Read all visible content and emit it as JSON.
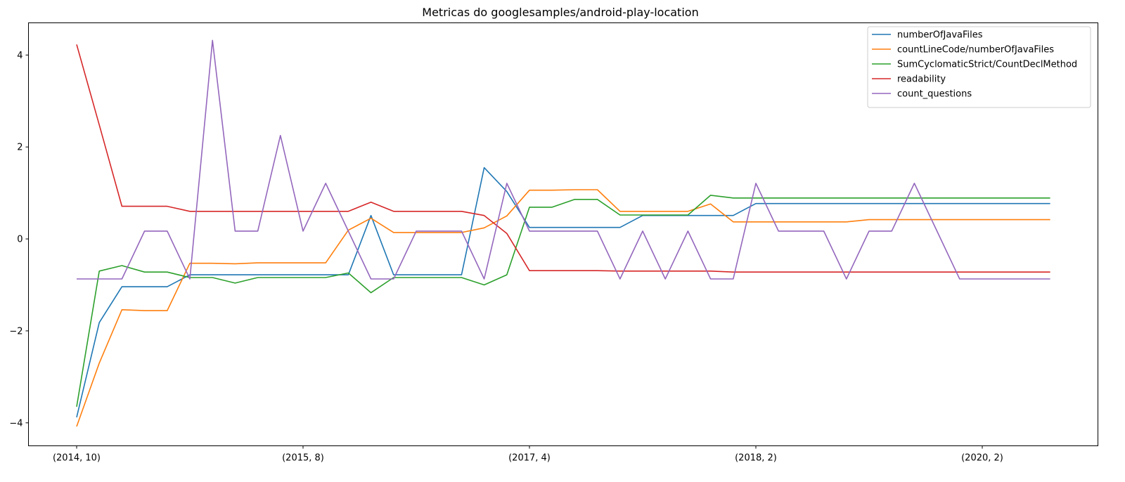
{
  "chart_data": {
    "type": "line",
    "title": "Metricas do googlesamples/android-play-location",
    "xlabel": "",
    "ylabel": "",
    "ylim": [
      -4.5,
      4.7
    ],
    "x_tick_labels": [
      {
        "index": 0,
        "label": "(2014, 10)"
      },
      {
        "index": 10,
        "label": "(2015, 8)"
      },
      {
        "index": 20,
        "label": "(2017, 4)"
      },
      {
        "index": 30,
        "label": "(2018, 2)"
      },
      {
        "index": 40,
        "label": "(2020, 2)"
      }
    ],
    "y_ticks": [
      -4,
      -2,
      0,
      2,
      4
    ],
    "y_tick_labels": [
      "−4",
      "−2",
      "0",
      "2",
      "4"
    ],
    "grid": false,
    "legend_position": "top-right",
    "series": [
      {
        "name": "numberOfJavaFiles",
        "color": "#1f77b4",
        "values": [
          -3.88,
          -1.82,
          -1.04,
          -1.04,
          -1.04,
          -0.78,
          -0.78,
          -0.78,
          -0.78,
          -0.78,
          -0.78,
          -0.78,
          -0.78,
          0.51,
          -0.78,
          -0.78,
          -0.78,
          -0.78,
          1.55,
          1.03,
          0.25,
          0.25,
          0.25,
          0.25,
          0.25,
          0.51,
          0.51,
          0.51,
          0.51,
          0.51,
          0.77,
          0.77,
          0.77,
          0.77,
          0.77,
          0.77,
          0.77,
          0.77,
          0.77,
          0.77,
          0.77,
          0.77,
          0.77,
          0.77
        ]
      },
      {
        "name": "countLineCode/numberOfJavaFiles",
        "color": "#ff7f0e",
        "values": [
          -4.08,
          -2.7,
          -1.54,
          -1.56,
          -1.56,
          -0.53,
          -0.53,
          -0.54,
          -0.52,
          -0.52,
          -0.52,
          -0.52,
          0.19,
          0.45,
          0.14,
          0.14,
          0.14,
          0.14,
          0.24,
          0.5,
          1.06,
          1.06,
          1.07,
          1.07,
          0.6,
          0.6,
          0.6,
          0.6,
          0.76,
          0.37,
          0.37,
          0.37,
          0.37,
          0.37,
          0.37,
          0.42,
          0.42,
          0.42,
          0.42,
          0.42,
          0.42,
          0.42,
          0.42,
          0.42
        ]
      },
      {
        "name": "SumCyclomaticStrict/CountDeclMethod",
        "color": "#2ca02c",
        "values": [
          -3.65,
          -0.7,
          -0.58,
          -0.72,
          -0.72,
          -0.84,
          -0.84,
          -0.96,
          -0.84,
          -0.84,
          -0.84,
          -0.84,
          -0.74,
          -1.17,
          -0.84,
          -0.84,
          -0.84,
          -0.84,
          -1.0,
          -0.78,
          0.69,
          0.69,
          0.86,
          0.86,
          0.52,
          0.52,
          0.52,
          0.52,
          0.95,
          0.89,
          0.89,
          0.89,
          0.89,
          0.89,
          0.89,
          0.89,
          0.89,
          0.89,
          0.89,
          0.89,
          0.89,
          0.89,
          0.89,
          0.89
        ]
      },
      {
        "name": "readability",
        "color": "#d62728",
        "values": [
          4.23,
          2.48,
          0.71,
          0.71,
          0.71,
          0.6,
          0.6,
          0.6,
          0.6,
          0.6,
          0.6,
          0.6,
          0.6,
          0.8,
          0.6,
          0.6,
          0.6,
          0.6,
          0.51,
          0.12,
          -0.69,
          -0.69,
          -0.69,
          -0.69,
          -0.7,
          -0.7,
          -0.7,
          -0.7,
          -0.7,
          -0.72,
          -0.72,
          -0.72,
          -0.72,
          -0.72,
          -0.72,
          -0.72,
          -0.72,
          -0.72,
          -0.72,
          -0.72,
          -0.72,
          -0.72,
          -0.72,
          -0.72
        ]
      },
      {
        "name": "count_questions",
        "color": "#9467bd",
        "values": [
          -0.87,
          -0.87,
          -0.87,
          0.17,
          0.17,
          -0.87,
          4.32,
          0.17,
          0.17,
          2.25,
          0.17,
          1.21,
          0.17,
          -0.87,
          -0.87,
          0.17,
          0.17,
          0.17,
          -0.87,
          1.21,
          0.17,
          0.17,
          0.17,
          0.17,
          -0.87,
          0.17,
          -0.87,
          0.17,
          -0.87,
          -0.87,
          1.21,
          0.17,
          0.17,
          0.17,
          -0.87,
          0.17,
          0.17,
          1.21,
          0.17,
          -0.87,
          -0.87,
          -0.87,
          -0.87,
          -0.87
        ]
      }
    ]
  }
}
